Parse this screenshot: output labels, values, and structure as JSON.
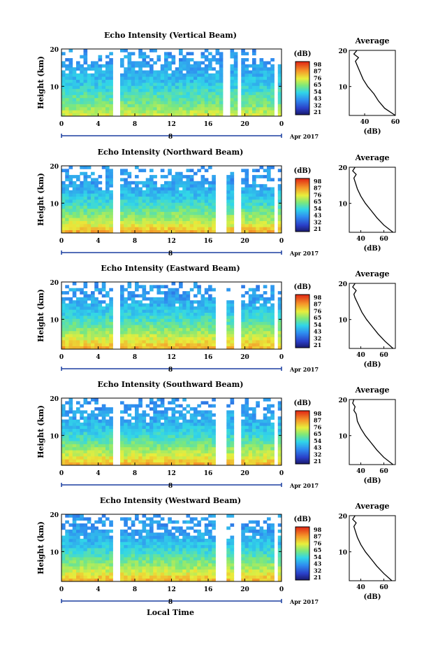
{
  "figure": {
    "xlabel_bottom": "Local Time",
    "date_label": "Apr 2017",
    "average_title": "Average",
    "average_xlabel": "(dB)",
    "colorbar_unit": "(dB)"
  },
  "chart_data": [
    {
      "type": "heatmap",
      "title": "Echo Intensity (Vertical Beam)",
      "ylabel": "Height (km)",
      "xlim": [
        0,
        24
      ],
      "ylim": [
        2,
        20
      ],
      "x_ticks": [
        "0",
        "4",
        "8",
        "12",
        "16",
        "20",
        "0"
      ],
      "y_ticks": [
        "20",
        "10"
      ],
      "day_marker": "8",
      "colorbar": {
        "ticks": [
          "98",
          "87",
          "76",
          "65",
          "54",
          "43",
          "32",
          "21"
        ]
      },
      "gaps": [
        [
          5.6,
          6.6
        ],
        [
          17.5,
          17.9
        ],
        [
          18.1,
          18.5
        ],
        [
          19.2,
          19.6
        ],
        [
          23.2,
          23.5
        ]
      ],
      "grid": false,
      "average_profile": {
        "xlim": [
          30,
          60
        ],
        "x_ticks": [
          "40",
          "60"
        ],
        "y_ticks": [
          "20",
          "10"
        ],
        "heights": [
          2,
          4,
          6,
          8,
          10,
          12,
          14,
          16,
          17,
          18,
          19,
          20
        ],
        "values": [
          60,
          53,
          49,
          46,
          42,
          39,
          37,
          35,
          34,
          36,
          33,
          35
        ]
      }
    },
    {
      "type": "heatmap",
      "title": "Echo Intensity (Northward Beam)",
      "ylabel": "Height (km)",
      "xlim": [
        0,
        24
      ],
      "ylim": [
        2,
        20
      ],
      "x_ticks": [
        "0",
        "4",
        "8",
        "12",
        "16",
        "20",
        "0"
      ],
      "y_ticks": [
        "20",
        "10"
      ],
      "day_marker": "8",
      "colorbar": {
        "ticks": [
          "98",
          "87",
          "76",
          "65",
          "54",
          "43",
          "32",
          "21"
        ]
      },
      "gaps": [
        [
          5.6,
          6.6
        ],
        [
          17.0,
          17.4
        ],
        [
          17.7,
          18.0
        ],
        [
          19.0,
          19.5
        ],
        [
          23.2,
          23.5
        ]
      ],
      "grid": false,
      "average_profile": {
        "xlim": [
          30,
          70
        ],
        "x_ticks": [
          "40",
          "60"
        ],
        "y_ticks": [
          "20",
          "10"
        ],
        "heights": [
          2,
          4,
          6,
          8,
          10,
          12,
          14,
          16,
          17,
          18,
          19,
          20
        ],
        "values": [
          68,
          60,
          54,
          49,
          44,
          40,
          37,
          35,
          34,
          36,
          33,
          35
        ]
      }
    },
    {
      "type": "heatmap",
      "title": "Echo Intensity (Eastward Beam)",
      "ylabel": "Height (km)",
      "xlim": [
        0,
        24
      ],
      "ylim": [
        2,
        20
      ],
      "x_ticks": [
        "0",
        "4",
        "8",
        "12",
        "16",
        "20",
        "0"
      ],
      "y_ticks": [
        "20",
        "10"
      ],
      "day_marker": "8",
      "colorbar": {
        "ticks": [
          "98",
          "87",
          "76",
          "65",
          "54",
          "43",
          "32",
          "21"
        ]
      },
      "gaps": [
        [
          5.6,
          6.6
        ],
        [
          17.0,
          17.4
        ],
        [
          17.7,
          18.0
        ],
        [
          19.0,
          19.5
        ],
        [
          23.2,
          23.5
        ]
      ],
      "grid": false,
      "average_profile": {
        "xlim": [
          30,
          70
        ],
        "x_ticks": [
          "40",
          "60"
        ],
        "y_ticks": [
          "20",
          "10"
        ],
        "heights": [
          2,
          4,
          6,
          8,
          10,
          12,
          14,
          16,
          17,
          18,
          19,
          20
        ],
        "values": [
          68,
          61,
          55,
          50,
          45,
          41,
          38,
          35,
          34,
          36,
          33,
          35
        ]
      }
    },
    {
      "type": "heatmap",
      "title": "Echo Intensity (Southward Beam)",
      "ylabel": "Height (km)",
      "xlim": [
        0,
        24
      ],
      "ylim": [
        2,
        20
      ],
      "x_ticks": [
        "0",
        "4",
        "8",
        "12",
        "16",
        "20",
        "0"
      ],
      "y_ticks": [
        "20",
        "10"
      ],
      "day_marker": "8",
      "colorbar": {
        "ticks": [
          "98",
          "87",
          "76",
          "65",
          "54",
          "43",
          "32",
          "21"
        ]
      },
      "gaps": [
        [
          5.6,
          6.6
        ],
        [
          17.0,
          17.4
        ],
        [
          17.7,
          18.0
        ],
        [
          19.0,
          19.5
        ],
        [
          23.2,
          23.5
        ]
      ],
      "grid": false,
      "average_profile": {
        "xlim": [
          30,
          70
        ],
        "x_ticks": [
          "40",
          "60"
        ],
        "y_ticks": [
          "20",
          "10"
        ],
        "heights": [
          2,
          4,
          6,
          8,
          10,
          12,
          14,
          16,
          17,
          18,
          19,
          20
        ],
        "values": [
          68,
          60,
          54,
          49,
          44,
          40,
          37,
          36,
          34,
          35,
          33,
          34
        ]
      }
    },
    {
      "type": "heatmap",
      "title": "Echo Intensity (Westward Beam)",
      "ylabel": "Height (km)",
      "xlim": [
        0,
        24
      ],
      "ylim": [
        2,
        20
      ],
      "x_ticks": [
        "0",
        "4",
        "8",
        "12",
        "16",
        "20",
        "0"
      ],
      "y_ticks": [
        "20",
        "10"
      ],
      "day_marker": "8",
      "colorbar": {
        "ticks": [
          "98",
          "87",
          "76",
          "65",
          "54",
          "43",
          "32",
          "21"
        ]
      },
      "gaps": [
        [
          5.6,
          6.6
        ],
        [
          17.0,
          17.4
        ],
        [
          17.7,
          18.0
        ],
        [
          19.0,
          19.5
        ],
        [
          23.2,
          23.5
        ]
      ],
      "grid": false,
      "average_profile": {
        "xlim": [
          30,
          70
        ],
        "x_ticks": [
          "40",
          "60"
        ],
        "y_ticks": [
          "20",
          "10"
        ],
        "heights": [
          2,
          4,
          6,
          8,
          10,
          12,
          14,
          16,
          17,
          18,
          19,
          20
        ],
        "values": [
          67,
          60,
          54,
          49,
          44,
          40,
          37,
          35,
          34,
          36,
          33,
          35
        ]
      }
    }
  ]
}
